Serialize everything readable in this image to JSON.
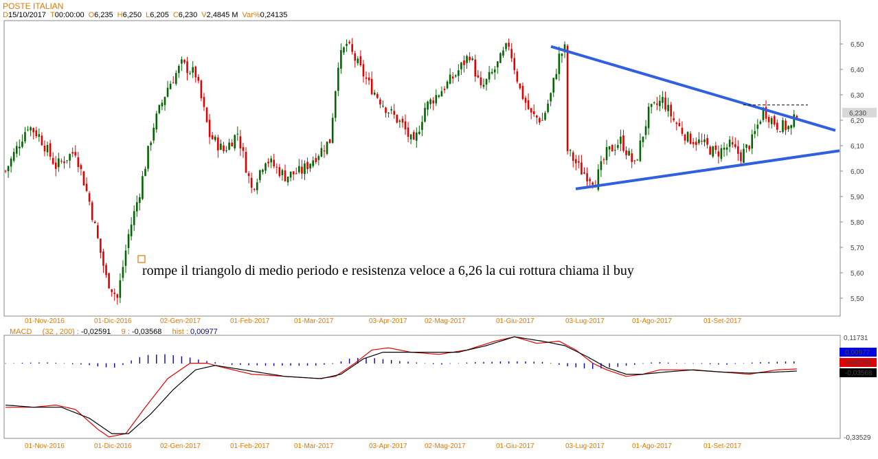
{
  "header": {
    "title": "POSTE ITALIAN",
    "fields": [
      {
        "k": "D",
        "v": "15/10/2017"
      },
      {
        "k": "T",
        "v": "00:00:00"
      },
      {
        "k": "O",
        "v": "6,235"
      },
      {
        "k": "H",
        "v": "6,250"
      },
      {
        "k": "L",
        "v": "6,205"
      },
      {
        "k": "C",
        "v": "6,230"
      },
      {
        "k": "V",
        "v": "2,4845 M"
      },
      {
        "k": "Var%",
        "v": "0,24135"
      }
    ]
  },
  "macd_header": {
    "label": "MACD",
    "params": "(32 , 200) :",
    "macd_value": "-0,02591",
    "signal_label": "9 :",
    "signal_value": "-0,03568",
    "hist_label": "hist :",
    "hist_value": "0,00977"
  },
  "colors": {
    "up": "#006600",
    "down": "#e00000",
    "trendline": "#3060e0",
    "macd_line": "#e00000",
    "signal_line": "#000000",
    "hist": "#0000c0",
    "axis_text": "#e07800"
  },
  "chart_data": [
    {
      "type": "candlestick",
      "title": "POSTE ITALIAN",
      "ylim": [
        5.42,
        6.58
      ],
      "y_ticks": [
        "6,50",
        "6,40",
        "6,30",
        "6,20",
        "6,10",
        "6,00",
        "5,90",
        "5,80",
        "5,70",
        "5,60",
        "5,50"
      ],
      "x_labels": [
        "01-Nov-2016",
        "01-Dic-2016",
        "02-Gen-2017",
        "01-Feb-2017",
        "01-Mar-2017",
        "03-Apr-2017",
        "02-Mag-2017",
        "01-Giu-2017",
        "03-Lug-2017",
        "01-Ago-2017",
        "01-Set-2017"
      ],
      "last_price_label": "6,230",
      "last_price": 6.23,
      "resistance": 6.26,
      "anchors": [
        [
          0,
          6.0
        ],
        [
          8,
          6.18
        ],
        [
          12,
          6.14
        ],
        [
          18,
          6.02
        ],
        [
          25,
          6.08
        ],
        [
          30,
          5.88
        ],
        [
          36,
          5.58
        ],
        [
          40,
          5.5
        ],
        [
          44,
          5.75
        ],
        [
          48,
          5.92
        ],
        [
          53,
          6.18
        ],
        [
          58,
          6.33
        ],
        [
          63,
          6.42
        ],
        [
          68,
          6.38
        ],
        [
          73,
          6.14
        ],
        [
          78,
          6.08
        ],
        [
          83,
          6.15
        ],
        [
          88,
          5.93
        ],
        [
          93,
          6.05
        ],
        [
          100,
          5.98
        ],
        [
          106,
          6.0
        ],
        [
          111,
          6.06
        ],
        [
          116,
          6.12
        ],
        [
          119,
          6.43
        ],
        [
          122,
          6.5
        ],
        [
          126,
          6.42
        ],
        [
          130,
          6.34
        ],
        [
          136,
          6.25
        ],
        [
          142,
          6.18
        ],
        [
          146,
          6.1
        ],
        [
          150,
          6.25
        ],
        [
          156,
          6.32
        ],
        [
          161,
          6.38
        ],
        [
          166,
          6.46
        ],
        [
          170,
          6.32
        ],
        [
          175,
          6.4
        ],
        [
          180,
          6.5
        ],
        [
          184,
          6.32
        ],
        [
          188,
          6.22
        ],
        [
          192,
          6.2
        ],
        [
          195,
          6.3
        ],
        [
          198,
          6.45
        ],
        [
          200,
          6.48
        ],
        [
          201,
          6.08
        ],
        [
          206,
          6.0
        ],
        [
          211,
          5.96
        ],
        [
          215,
          6.07
        ],
        [
          220,
          6.12
        ],
        [
          225,
          6.02
        ],
        [
          230,
          6.23
        ],
        [
          235,
          6.28
        ],
        [
          239,
          6.2
        ],
        [
          244,
          6.13
        ],
        [
          249,
          6.11
        ],
        [
          254,
          6.07
        ],
        [
          259,
          6.1
        ],
        [
          263,
          6.06
        ],
        [
          267,
          6.12
        ],
        [
          271,
          6.24
        ],
        [
          276,
          6.18
        ],
        [
          281,
          6.17
        ],
        [
          283,
          6.23
        ]
      ],
      "triangle_upper": [
        [
          "May-2017",
          6.49
        ],
        [
          "Oct-2017",
          6.16
        ]
      ],
      "triangle_lower": [
        [
          "Jun-2017",
          5.93
        ],
        [
          "Oct-2017",
          6.08
        ]
      ],
      "annotation": "rompe il triangolo di medio periodo e resistenza veloce a 6,26 la cui rottura chiama il buy"
    },
    {
      "type": "line",
      "title": "MACD",
      "ylim": [
        -0.33529,
        0.11731
      ],
      "y_ticks": [
        "0,11731",
        "-0,33529"
      ],
      "value_tags": [
        {
          "text": "0,00977",
          "bg": "#0000e0",
          "fg": "#ffffff"
        },
        {
          "text": "-0,02591",
          "bg": "#e00000",
          "fg": "#ffffff"
        },
        {
          "text": "-0,03568",
          "bg": "#000000",
          "fg": "#ffffff"
        }
      ],
      "series": [
        {
          "name": "MACD",
          "anchors": [
            [
              0,
              -0.2
            ],
            [
              10,
              -0.2
            ],
            [
              18,
              -0.19
            ],
            [
              25,
              -0.21
            ],
            [
              33,
              -0.3
            ],
            [
              37,
              -0.335
            ],
            [
              43,
              -0.32
            ],
            [
              50,
              -0.2
            ],
            [
              58,
              -0.07
            ],
            [
              66,
              0.0
            ],
            [
              72,
              0.0
            ],
            [
              78,
              -0.02
            ],
            [
              88,
              -0.05
            ],
            [
              100,
              -0.06
            ],
            [
              112,
              -0.07
            ],
            [
              118,
              -0.06
            ],
            [
              125,
              0.0
            ],
            [
              131,
              0.06
            ],
            [
              137,
              0.07
            ],
            [
              145,
              0.05
            ],
            [
              155,
              0.04
            ],
            [
              165,
              0.06
            ],
            [
              175,
              0.1
            ],
            [
              182,
              0.12
            ],
            [
              190,
              0.09
            ],
            [
              198,
              0.1
            ],
            [
              204,
              0.06
            ],
            [
              210,
              0.0
            ],
            [
              215,
              -0.03
            ],
            [
              222,
              -0.06
            ],
            [
              228,
              -0.05
            ],
            [
              234,
              -0.03
            ],
            [
              244,
              -0.03
            ],
            [
              256,
              -0.04
            ],
            [
              266,
              -0.05
            ],
            [
              276,
              -0.03
            ],
            [
              283,
              -0.026
            ]
          ]
        },
        {
          "name": "Signal",
          "anchors": [
            [
              0,
              -0.19
            ],
            [
              10,
              -0.2
            ],
            [
              20,
              -0.2
            ],
            [
              30,
              -0.25
            ],
            [
              38,
              -0.32
            ],
            [
              44,
              -0.32
            ],
            [
              52,
              -0.23
            ],
            [
              60,
              -0.12
            ],
            [
              68,
              -0.03
            ],
            [
              75,
              -0.01
            ],
            [
              85,
              -0.03
            ],
            [
              100,
              -0.06
            ],
            [
              113,
              -0.07
            ],
            [
              120,
              -0.05
            ],
            [
              128,
              0.02
            ],
            [
              135,
              0.05
            ],
            [
              142,
              0.05
            ],
            [
              152,
              0.05
            ],
            [
              162,
              0.05
            ],
            [
              172,
              0.08
            ],
            [
              182,
              0.12
            ],
            [
              192,
              0.1
            ],
            [
              200,
              0.08
            ],
            [
              208,
              0.03
            ],
            [
              215,
              -0.02
            ],
            [
              222,
              -0.05
            ],
            [
              228,
              -0.05
            ],
            [
              236,
              -0.04
            ],
            [
              246,
              -0.03
            ],
            [
              256,
              -0.04
            ],
            [
              266,
              -0.045
            ],
            [
              276,
              -0.04
            ],
            [
              283,
              -0.03568
            ]
          ]
        }
      ],
      "hist_anchors": [
        [
          0,
          0.0
        ],
        [
          15,
          0.003
        ],
        [
          28,
          -0.005
        ],
        [
          35,
          -0.015
        ],
        [
          40,
          -0.02
        ],
        [
          46,
          0.02
        ],
        [
          52,
          0.04
        ],
        [
          58,
          0.04
        ],
        [
          64,
          0.03
        ],
        [
          70,
          0.015
        ],
        [
          80,
          -0.005
        ],
        [
          95,
          -0.01
        ],
        [
          110,
          -0.01
        ],
        [
          118,
          0.0
        ],
        [
          124,
          0.025
        ],
        [
          130,
          0.025
        ],
        [
          138,
          0.015
        ],
        [
          145,
          0.005
        ],
        [
          155,
          -0.005
        ],
        [
          168,
          0.005
        ],
        [
          182,
          0.01
        ],
        [
          192,
          0.005
        ],
        [
          198,
          -0.005
        ],
        [
          205,
          -0.02
        ],
        [
          210,
          -0.025
        ],
        [
          215,
          -0.02
        ],
        [
          222,
          -0.01
        ],
        [
          232,
          0.005
        ],
        [
          245,
          0.0
        ],
        [
          258,
          -0.005
        ],
        [
          270,
          0.005
        ],
        [
          283,
          0.00977
        ]
      ]
    }
  ]
}
